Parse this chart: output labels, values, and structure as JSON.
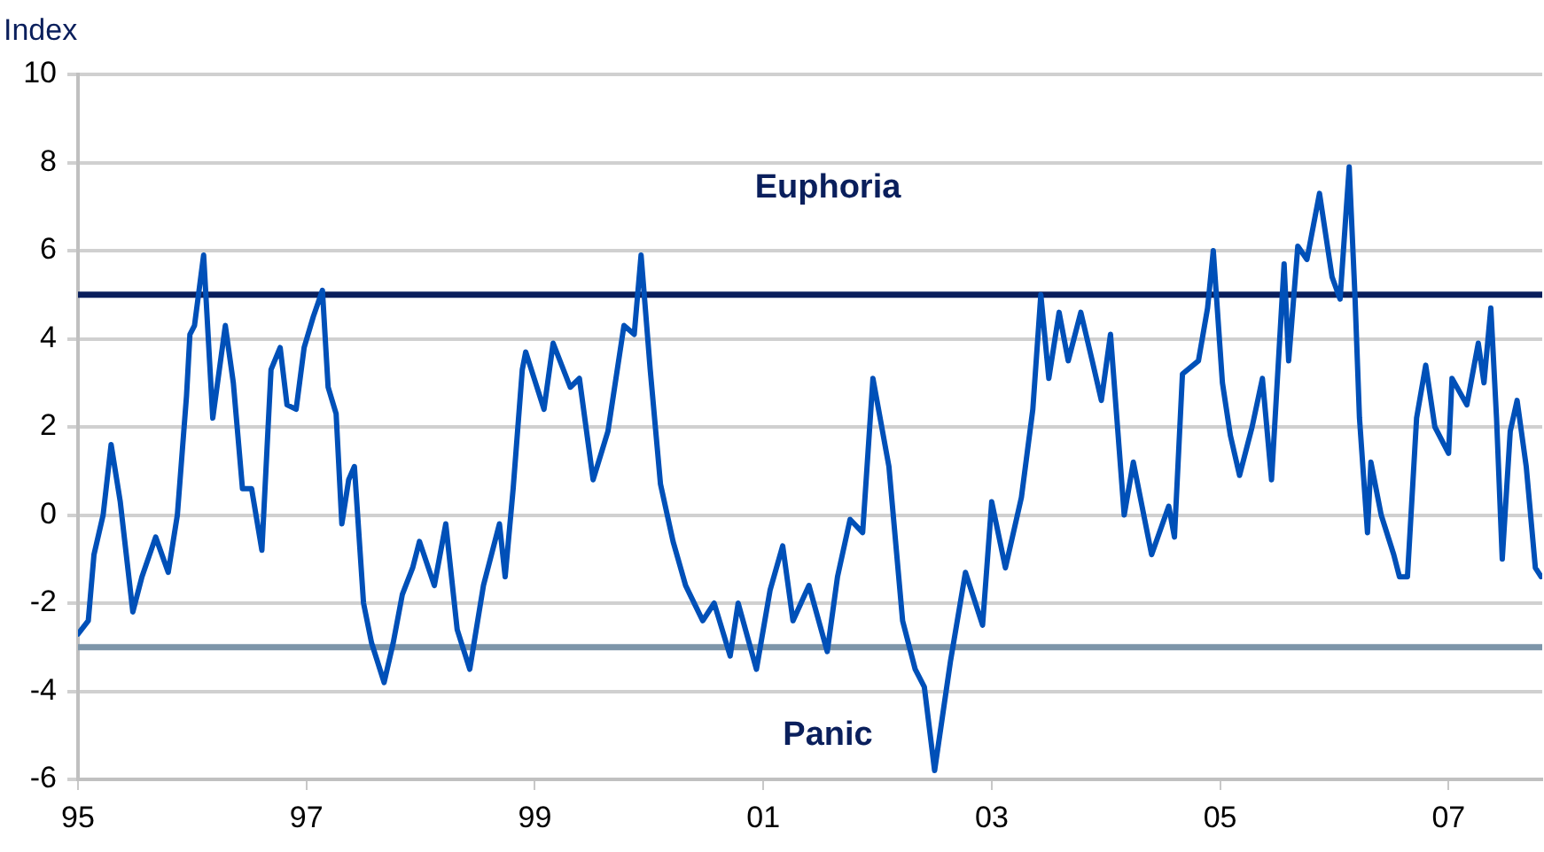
{
  "chart_data": {
    "type": "line",
    "ylabel": "Index",
    "color": "#0050b8",
    "x": [
      1995.0,
      1995.09,
      1995.14,
      1995.22,
      1995.29,
      1995.37,
      1995.48,
      1995.56,
      1995.68,
      1995.79,
      1995.87,
      1995.95,
      1995.98,
      1996.02,
      1996.1,
      1996.18,
      1996.29,
      1996.36,
      1996.44,
      1996.52,
      1996.61,
      1996.69,
      1996.77,
      1996.83,
      1996.91,
      1996.98,
      1997.06,
      1997.14,
      1997.19,
      1997.26,
      1997.31,
      1997.37,
      1997.42,
      1997.5,
      1997.57,
      1997.68,
      1997.76,
      1997.84,
      1997.93,
      1997.99,
      1998.12,
      1998.22,
      1998.32,
      1998.43,
      1998.55,
      1998.69,
      1998.74,
      1998.81,
      1998.89,
      1998.92,
      1999.08,
      1999.16,
      1999.31,
      1999.39,
      1999.51,
      1999.64,
      1999.78,
      1999.87,
      1999.93,
      2000.01,
      2000.1,
      2000.21,
      2000.32,
      2000.47,
      2000.57,
      2000.71,
      2000.78,
      2000.94,
      2001.06,
      2001.17,
      2001.26,
      2001.4,
      2001.56,
      2001.65,
      2001.76,
      2001.87,
      2001.96,
      2002.1,
      2002.22,
      2002.33,
      2002.41,
      2002.5,
      2002.64,
      2002.77,
      2002.92,
      2003.0,
      2003.12,
      2003.26,
      2003.36,
      2003.43,
      2003.5,
      2003.59,
      2003.67,
      2003.78,
      2003.88,
      2003.96,
      2004.04,
      2004.16,
      2004.24,
      2004.4,
      2004.55,
      2004.6,
      2004.67,
      2004.81,
      2004.89,
      2004.94,
      2005.02,
      2005.09,
      2005.17,
      2005.28,
      2005.37,
      2005.45,
      2005.56,
      2005.6,
      2005.68,
      2005.76,
      2005.87,
      2005.98,
      2006.05,
      2006.13,
      2006.18,
      2006.22,
      2006.29,
      2006.32,
      2006.41,
      2006.52,
      2006.57,
      2006.64,
      2006.72,
      2006.8,
      2006.88,
      2007.0,
      2007.03,
      2007.16,
      2007.26,
      2007.31,
      2007.37,
      2007.42,
      2007.47,
      2007.54,
      2007.6,
      2007.68,
      2007.76,
      2007.81
    ],
    "values": [
      -2.7,
      -2.4,
      -0.9,
      0.0,
      1.6,
      0.3,
      -2.2,
      -1.4,
      -0.5,
      -1.3,
      0.0,
      2.7,
      4.1,
      4.3,
      5.9,
      2.2,
      4.3,
      3.0,
      0.6,
      0.6,
      -0.8,
      3.3,
      3.8,
      2.5,
      2.4,
      3.8,
      4.5,
      5.1,
      2.9,
      2.3,
      -0.2,
      0.8,
      1.1,
      -2.0,
      -2.9,
      -3.8,
      -2.9,
      -1.8,
      -1.2,
      -0.6,
      -1.6,
      -0.2,
      -2.6,
      -3.5,
      -1.6,
      -0.2,
      -1.4,
      0.6,
      3.3,
      3.7,
      2.4,
      3.9,
      2.9,
      3.1,
      0.8,
      1.9,
      4.3,
      4.1,
      5.9,
      3.3,
      0.7,
      -0.6,
      -1.6,
      -2.4,
      -2.0,
      -3.2,
      -2.0,
      -3.5,
      -1.7,
      -0.7,
      -2.4,
      -1.6,
      -3.1,
      -1.4,
      -0.1,
      -0.4,
      3.1,
      1.1,
      -2.4,
      -3.5,
      -3.9,
      -5.8,
      -3.3,
      -1.3,
      -2.5,
      0.3,
      -1.2,
      0.4,
      2.4,
      5.0,
      3.1,
      4.6,
      3.5,
      4.6,
      3.5,
      2.6,
      4.1,
      0.0,
      1.2,
      -0.9,
      0.2,
      -0.5,
      3.2,
      3.5,
      4.7,
      6.0,
      3.0,
      1.8,
      0.9,
      2.0,
      3.1,
      0.8,
      5.7,
      3.5,
      6.1,
      5.8,
      7.3,
      5.4,
      4.9,
      7.9,
      5.0,
      2.2,
      -0.4,
      1.2,
      0.0,
      -0.9,
      -1.4,
      -1.4,
      2.2,
      3.4,
      2.0,
      1.4,
      3.1,
      2.5,
      3.9,
      3.0,
      4.7,
      2.2,
      -1.0,
      1.9,
      2.6,
      1.1,
      -1.2,
      -1.4
    ],
    "xlim": [
      1995,
      2007.82
    ],
    "xticks": [
      {
        "value": 1995,
        "label": "95"
      },
      {
        "value": 1997,
        "label": "97"
      },
      {
        "value": 1999,
        "label": "99"
      },
      {
        "value": 2001,
        "label": "01"
      },
      {
        "value": 2003,
        "label": "03"
      },
      {
        "value": 2005,
        "label": "05"
      },
      {
        "value": 2007,
        "label": "07"
      }
    ],
    "ylim": [
      -6,
      10
    ],
    "yticks": [
      -6,
      -4,
      -2,
      0,
      2,
      4,
      6,
      8,
      10
    ],
    "ref_lines": [
      {
        "axis": "y",
        "value": 5,
        "label": "Euphoria",
        "color": "#0a1f5c"
      },
      {
        "axis": "y",
        "value": -3,
        "label": "Panic",
        "color": "#7d95a9"
      }
    ],
    "grid": "y",
    "legend": false,
    "marker": "none",
    "line_style": "solid"
  }
}
